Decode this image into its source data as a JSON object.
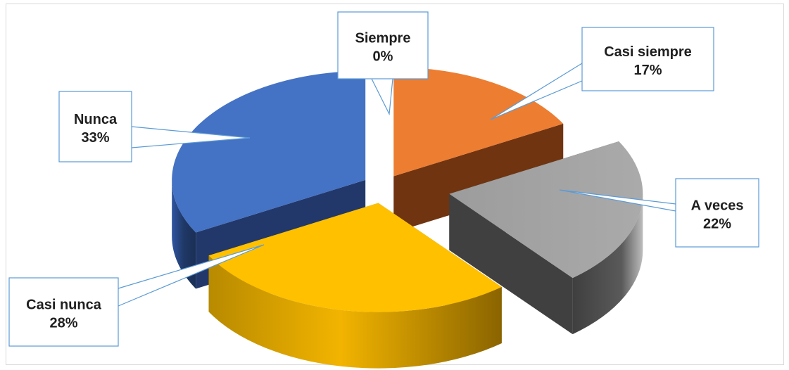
{
  "chart_data": {
    "type": "pie",
    "title": "",
    "slices": [
      {
        "label": "Siempre",
        "value": 0,
        "display": "0%",
        "color": "#d9d9d9"
      },
      {
        "label": "Casi siempre",
        "value": 17,
        "display": "17%",
        "color": "#ed7d31"
      },
      {
        "label": "A veces",
        "value": 22,
        "display": "22%",
        "color": "#a5a5a5"
      },
      {
        "label": "Casi nunca",
        "value": 28,
        "display": "28%",
        "color": "#ffc000"
      },
      {
        "label": "Nunca",
        "value": 33,
        "display": "33%",
        "color": "#4472c4"
      }
    ],
    "exploded": true,
    "style": "3d",
    "label_border_color": "#5b9bd5"
  }
}
